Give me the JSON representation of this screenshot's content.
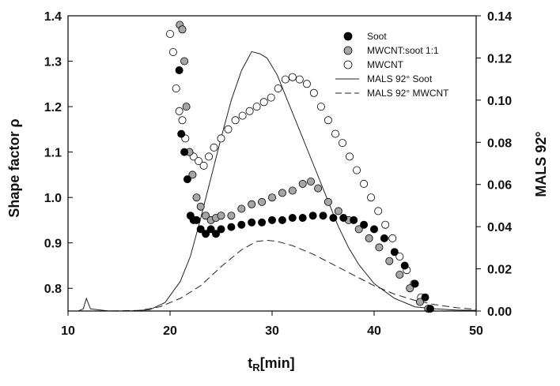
{
  "chart_data": {
    "type": "scatter",
    "xlabel": "t",
    "xlabel_sub": "R",
    "xlabel_unit": "[min]",
    "ylabel": "Shape factor ρ",
    "y2label": "MALS 92°",
    "xlim": [
      10,
      50
    ],
    "ylim": [
      0.75,
      1.4
    ],
    "y2lim": [
      0.0,
      0.14
    ],
    "xticks": [
      "10",
      "20",
      "30",
      "40",
      "50"
    ],
    "yticks": [
      "0.8",
      "0.9",
      "1.0",
      "1.1",
      "1.2",
      "1.3",
      "1.4"
    ],
    "y2ticks": [
      "0.00",
      "0.02",
      "0.04",
      "0.06",
      "0.08",
      "0.10",
      "0.12",
      "0.14"
    ],
    "grid": false,
    "legend_position": "top-right",
    "legend": [
      {
        "label": "Soot",
        "marker": "filled-circle",
        "color": "#000000"
      },
      {
        "label": "MWCNT:soot 1:1",
        "marker": "gray-circle",
        "color": "#a6a6a6"
      },
      {
        "label": "MWCNT",
        "marker": "open-circle",
        "color": "#ffffff"
      },
      {
        "label": "MALS 92° Soot",
        "line": "solid"
      },
      {
        "label": "MALS 92° MWCNT",
        "line": "dashed"
      }
    ],
    "series": [
      {
        "name": "Soot",
        "axis": "left",
        "kind": "scatter",
        "fill": "#000000",
        "x": [
          20.9,
          21.1,
          21.4,
          21.7,
          22.0,
          22.3,
          22.6,
          23.0,
          23.5,
          24.0,
          24.5,
          25.0,
          26.0,
          27.0,
          28.0,
          29.0,
          30.0,
          31.0,
          32.0,
          33.0,
          34.0,
          35.0,
          36.0,
          37.0,
          38.0,
          39.0,
          40.0,
          41.0,
          42.0,
          43.0,
          44.0,
          45.0,
          45.5
        ],
        "y": [
          1.28,
          1.14,
          1.1,
          1.04,
          0.96,
          0.95,
          0.95,
          0.93,
          0.92,
          0.93,
          0.92,
          0.93,
          0.935,
          0.94,
          0.945,
          0.945,
          0.95,
          0.95,
          0.955,
          0.955,
          0.96,
          0.96,
          0.955,
          0.955,
          0.95,
          0.94,
          0.93,
          0.91,
          0.88,
          0.85,
          0.81,
          0.78,
          0.755
        ]
      },
      {
        "name": "MWCNT:soot 1:1",
        "axis": "left",
        "kind": "scatter",
        "fill": "#a6a6a6",
        "x": [
          20.95,
          21.2,
          21.4,
          21.6,
          21.9,
          22.2,
          22.6,
          23.0,
          23.5,
          24.0,
          24.5,
          25.0,
          26.0,
          27.0,
          28.0,
          29.0,
          30.0,
          31.0,
          32.0,
          33.0,
          33.8,
          34.5,
          35.5,
          36.5,
          37.5,
          38.5,
          39.5,
          40.5,
          41.5,
          42.5,
          43.5,
          44.5,
          45.3
        ],
        "y": [
          1.38,
          1.37,
          1.3,
          1.2,
          1.1,
          1.05,
          1.0,
          0.98,
          0.96,
          0.95,
          0.955,
          0.96,
          0.96,
          0.975,
          0.985,
          0.99,
          1.0,
          1.01,
          1.015,
          1.03,
          1.035,
          1.02,
          0.99,
          0.97,
          0.95,
          0.93,
          0.91,
          0.89,
          0.86,
          0.83,
          0.8,
          0.77,
          0.755
        ]
      },
      {
        "name": "MWCNT",
        "axis": "left",
        "kind": "scatter",
        "fill": "#ffffff",
        "x": [
          20.0,
          20.3,
          20.6,
          20.9,
          21.2,
          21.5,
          21.9,
          22.3,
          22.8,
          23.3,
          23.8,
          24.3,
          25.0,
          25.7,
          26.4,
          27.1,
          27.8,
          28.5,
          29.2,
          29.9,
          30.6,
          31.3,
          32.0,
          32.7,
          33.4,
          34.1,
          34.8,
          35.5,
          36.2,
          36.9,
          37.6,
          38.3,
          39.0,
          39.7,
          40.4,
          41.1,
          41.8,
          42.5,
          43.2,
          43.9,
          44.6,
          45.3
        ],
        "y": [
          1.36,
          1.32,
          1.24,
          1.19,
          1.17,
          1.13,
          1.1,
          1.09,
          1.08,
          1.07,
          1.09,
          1.11,
          1.13,
          1.15,
          1.17,
          1.18,
          1.19,
          1.2,
          1.21,
          1.22,
          1.24,
          1.26,
          1.265,
          1.26,
          1.25,
          1.23,
          1.2,
          1.17,
          1.14,
          1.12,
          1.09,
          1.06,
          1.03,
          1.0,
          0.97,
          0.94,
          0.91,
          0.87,
          0.84,
          0.81,
          0.78,
          0.755
        ]
      },
      {
        "name": "MALS 92° Soot",
        "axis": "right",
        "kind": "line",
        "dash": "solid",
        "x": [
          11.0,
          11.5,
          11.8,
          12.2,
          14.0,
          16.0,
          18.0,
          19.5,
          21.0,
          22.0,
          23.0,
          24.0,
          25.0,
          26.0,
          27.0,
          28.0,
          28.8,
          29.5,
          30.5,
          31.5,
          32.5,
          33.5,
          34.5,
          35.5,
          36.5,
          37.5,
          38.5,
          40.0,
          42.0,
          44.0,
          46.0,
          48.0,
          50.0
        ],
        "y": [
          0.0,
          0.001,
          0.006,
          0.001,
          0.0,
          0.0,
          0.0006,
          0.004,
          0.014,
          0.026,
          0.044,
          0.063,
          0.082,
          0.1,
          0.114,
          0.123,
          0.122,
          0.12,
          0.112,
          0.1,
          0.088,
          0.076,
          0.064,
          0.052,
          0.04,
          0.03,
          0.022,
          0.013,
          0.006,
          0.002,
          0.001,
          0.0005,
          0.0003
        ]
      },
      {
        "name": "MALS 92° MWCNT",
        "axis": "right",
        "kind": "line",
        "dash": "dashed",
        "x": [
          11.0,
          14.0,
          17.0,
          19.0,
          21.0,
          23.0,
          25.0,
          27.0,
          28.5,
          29.5,
          30.5,
          32.0,
          34.0,
          36.0,
          38.0,
          40.0,
          42.0,
          44.0,
          46.0,
          48.0,
          50.0
        ],
        "y": [
          0.0,
          0.0,
          0.0003,
          0.002,
          0.006,
          0.012,
          0.021,
          0.029,
          0.033,
          0.0335,
          0.033,
          0.031,
          0.027,
          0.022,
          0.017,
          0.012,
          0.008,
          0.005,
          0.003,
          0.0016,
          0.0008
        ]
      }
    ]
  }
}
